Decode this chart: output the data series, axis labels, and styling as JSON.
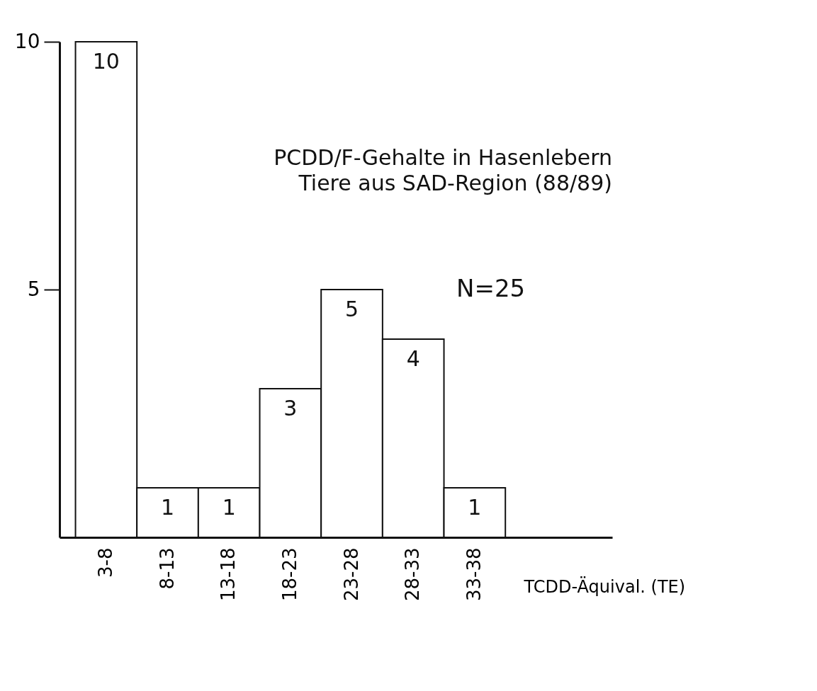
{
  "chart_data": {
    "type": "bar",
    "title": "PCDD/F-Gehalte in Hasenlebern",
    "subtitle": "Tiere aus SAD-Region (88/89)",
    "annotations": [
      "N=25"
    ],
    "xlabel": "TCDD-Äquival. (TE)",
    "categories": [
      "3-8",
      "8-13",
      "13-18",
      "18-23",
      "23-28",
      "28-33",
      "33-38"
    ],
    "values": [
      10,
      1,
      1,
      3,
      5,
      4,
      1
    ],
    "color": "#ffffff",
    "ylim": [
      0,
      10
    ],
    "yticks": [
      5,
      10
    ],
    "data_labels": true,
    "grid": false
  }
}
